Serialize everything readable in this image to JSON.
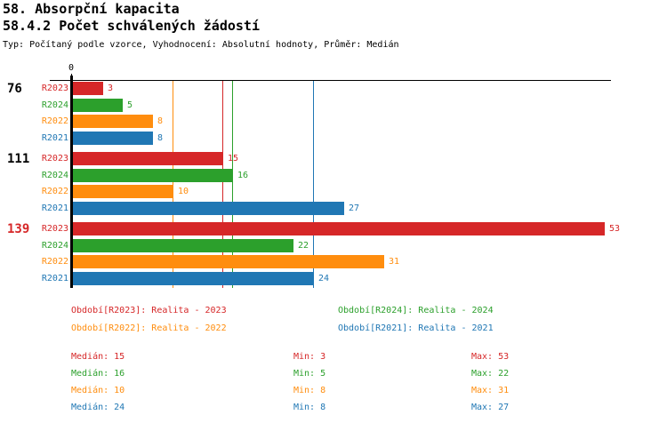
{
  "header": {
    "title": "58. Absorpční kapacita",
    "subtitle": "58.4.2 Počet schválených žádostí",
    "type_line": "Typ: Počítaný podle vzorce, Vyhodnocení: Absolutní hodnoty, Průměr: Medián"
  },
  "colors": {
    "R2023": "#d62728",
    "R2024": "#2ca02c",
    "R2022": "#ff8d0e",
    "R2021": "#2077b4",
    "axis": "#000000",
    "background": "#ffffff"
  },
  "chart_data": {
    "type": "bar",
    "orientation": "horizontal",
    "title": "58.4.2 Počet schválených žádostí",
    "x_axis": {
      "origin_tick_label": "0",
      "min": 0,
      "max": 55,
      "grid": false
    },
    "series_order": [
      "R2023",
      "R2024",
      "R2022",
      "R2021"
    ],
    "groups": [
      {
        "label": "76",
        "label_color": "#000000",
        "values": {
          "R2023": 3,
          "R2024": 5,
          "R2022": 8,
          "R2021": 8
        }
      },
      {
        "label": "111",
        "label_color": "#000000",
        "values": {
          "R2023": 15,
          "R2024": 16,
          "R2022": 10,
          "R2021": 27
        }
      },
      {
        "label": "139",
        "label_color": "#d62728",
        "values": {
          "R2023": 53,
          "R2024": 22,
          "R2022": 31,
          "R2021": 24
        }
      }
    ],
    "median_reference_lines": {
      "R2023": 15,
      "R2024": 16,
      "R2022": 10,
      "R2021": 24
    },
    "stats": [
      {
        "series": "R2023",
        "median": 15,
        "min": 3,
        "max": 53
      },
      {
        "series": "R2024",
        "median": 16,
        "min": 5,
        "max": 22
      },
      {
        "series": "R2022",
        "median": 10,
        "min": 8,
        "max": 31
      },
      {
        "series": "R2021",
        "median": 24,
        "min": 8,
        "max": 27
      }
    ]
  },
  "legend": {
    "items": [
      {
        "series": "R2023",
        "text": "Období[R2023]: Realita - 2023"
      },
      {
        "series": "R2024",
        "text": "Období[R2024]: Realita - 2024"
      },
      {
        "series": "R2022",
        "text": "Období[R2022]: Realita - 2022"
      },
      {
        "series": "R2021",
        "text": "Období[R2021]: Realita - 2021"
      }
    ]
  },
  "stats_panel": {
    "rows": [
      {
        "series": "R2023",
        "median_text": "Medián: 15",
        "min_text": "Min: 3",
        "max_text": "Max: 53"
      },
      {
        "series": "R2024",
        "median_text": "Medián: 16",
        "min_text": "Min: 5",
        "max_text": "Max: 22"
      },
      {
        "series": "R2022",
        "median_text": "Medián: 10",
        "min_text": "Min: 8",
        "max_text": "Max: 31"
      },
      {
        "series": "R2021",
        "median_text": "Medián: 24",
        "min_text": "Min: 8",
        "max_text": "Max: 27"
      }
    ]
  }
}
